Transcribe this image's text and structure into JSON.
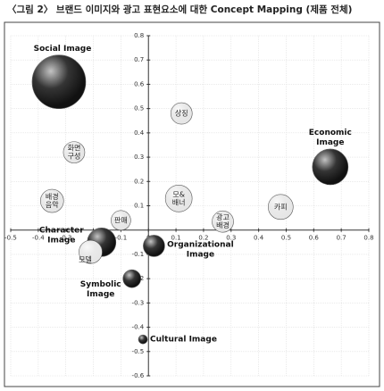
{
  "chart_data": {
    "type": "bubble",
    "title": "〈그림 2〉 브랜드 이미지와 광고 표현요소에 대한 Concept Mapping (제품 전체)",
    "xlim": [
      -0.5,
      0.8
    ],
    "ylim": [
      -0.6,
      0.8
    ],
    "xticks": [
      -0.5,
      -0.4,
      -0.3,
      -0.2,
      -0.1,
      0,
      0.1,
      0.2,
      0.3,
      0.4,
      0.5,
      0.6,
      0.7,
      0.8
    ],
    "yticks": [
      -0.6,
      -0.5,
      -0.4,
      -0.3,
      -0.2,
      -0.1,
      0.1,
      0.2,
      0.3,
      0.4,
      0.5,
      0.6,
      0.7,
      0.8
    ],
    "grid": true,
    "points": [
      {
        "label": [
          "Social Image"
        ],
        "x": -0.325,
        "y": 0.61,
        "size": 30,
        "color": "#111111"
      },
      {
        "label": [
          "Economic",
          "Image"
        ],
        "x": 0.66,
        "y": 0.26,
        "size": 20,
        "color": "#111111"
      },
      {
        "label": [
          "Character",
          "Image"
        ],
        "x": -0.17,
        "y": -0.05,
        "size": 16,
        "color": "#111111"
      },
      {
        "label": [
          "Organizational",
          "Image"
        ],
        "x": 0.02,
        "y": -0.065,
        "size": 12,
        "color": "#111111"
      },
      {
        "label": [
          "Symbolic",
          "Image"
        ],
        "x": -0.06,
        "y": -0.2,
        "size": 10,
        "color": "#111111"
      },
      {
        "label": [
          "Cultural Image"
        ],
        "x": -0.02,
        "y": -0.45,
        "size": 5,
        "color": "#111111"
      },
      {
        "label": [
          "상징"
        ],
        "x": 0.12,
        "y": 0.48,
        "size": 12,
        "color": "#e6e6e6"
      },
      {
        "label": [
          "화면",
          "구성"
        ],
        "x": -0.27,
        "y": 0.32,
        "size": 12,
        "color": "#e6e6e6"
      },
      {
        "label": [
          "배경",
          "음악"
        ],
        "x": -0.35,
        "y": 0.12,
        "size": 13,
        "color": "#e6e6e6"
      },
      {
        "label": [
          "모&",
          "배너"
        ],
        "x": 0.11,
        "y": 0.13,
        "size": 15,
        "color": "#e6e6e6"
      },
      {
        "label": [
          "광고",
          "배경"
        ],
        "x": 0.27,
        "y": 0.035,
        "size": 12,
        "color": "#e6e6e6"
      },
      {
        "label": [
          "카피"
        ],
        "x": 0.48,
        "y": 0.095,
        "size": 14,
        "color": "#e6e6e6"
      },
      {
        "label": [
          "판매"
        ],
        "x": -0.1,
        "y": 0.04,
        "size": 11,
        "color": "#e6e6e6"
      },
      {
        "label": [
          "모델"
        ],
        "x": -0.21,
        "y": -0.09,
        "size": 13,
        "color": "#e6e6e6"
      }
    ]
  }
}
